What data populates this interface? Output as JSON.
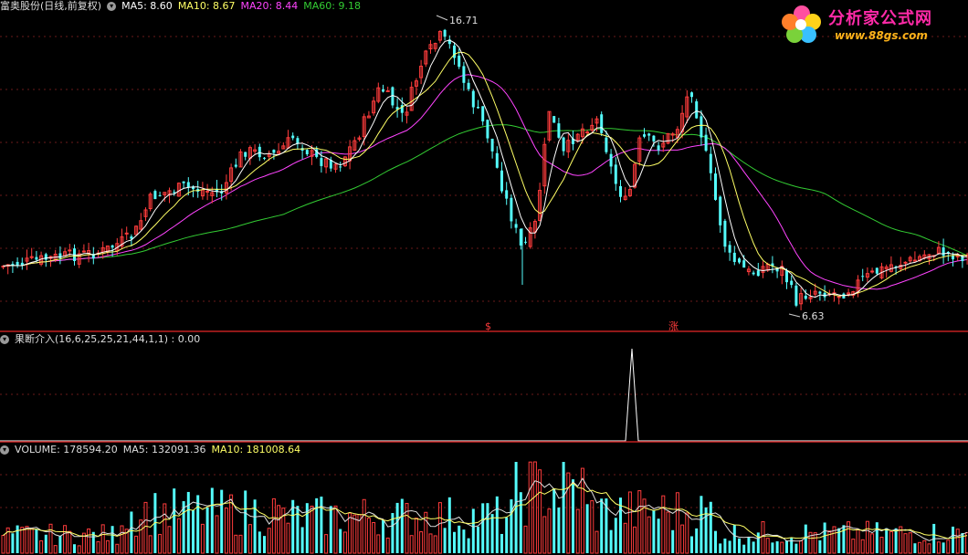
{
  "main_panel": {
    "stock_label": "富奥股份(日线,前复权)",
    "ma_legend": [
      {
        "label": "MA5: 8.60",
        "color": "#ffffff"
      },
      {
        "label": "MA10: 8.67",
        "color": "#ffff66"
      },
      {
        "label": "MA20: 8.44",
        "color": "#ff44ff"
      },
      {
        "label": "MA60: 9.18",
        "color": "#33cc33"
      }
    ],
    "high_label": "16.71",
    "low_label": "6.63",
    "signal_markers": [
      "$",
      "涨"
    ],
    "up_color": "#ff3c3c",
    "down_color": "#54fcfc"
  },
  "indicator_panel": {
    "label": "果断介入(16,6,25,25,21,44,1,1) : 0.00"
  },
  "volume_panel": {
    "legend": [
      {
        "label": "VOLUME: 178594.20",
        "color": "#dddddd"
      },
      {
        "label": "MA5: 132091.36",
        "color": "#dddddd"
      },
      {
        "label": "MA10: 181008.64",
        "color": "#ffff66"
      }
    ]
  },
  "logo": {
    "title": "分析家公式网",
    "url": "www.88gs.com"
  },
  "icons": {
    "panel_toggle": "chevron-down-icon",
    "logo_flower": "flower-logo-icon"
  }
}
